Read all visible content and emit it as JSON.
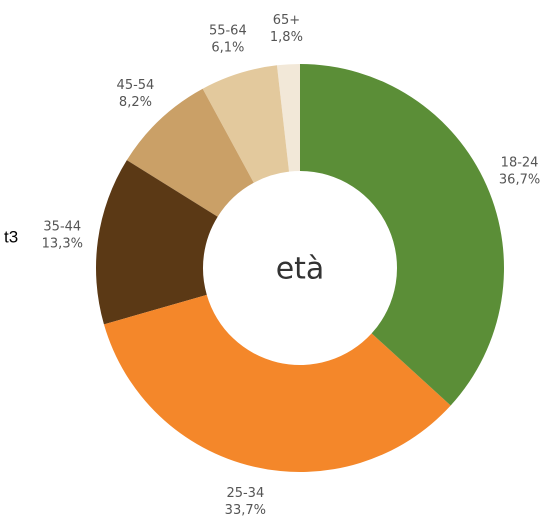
{
  "chart_data": {
    "type": "donut",
    "center_label": "età",
    "annotation": "t3",
    "categories": [
      "18-24",
      "25-34",
      "35-44",
      "45-54",
      "55-64",
      "65+"
    ],
    "values": [
      36.7,
      33.7,
      13.3,
      8.2,
      6.1,
      1.8
    ],
    "value_labels": [
      "36,7%",
      "33,7%",
      "13,3%",
      "8,2%",
      "6,1%",
      "1,8%"
    ],
    "colors": [
      "#5b8e37",
      "#f4872a",
      "#5b3915",
      "#caa067",
      "#e3c99d",
      "#f2e8d8"
    ]
  }
}
